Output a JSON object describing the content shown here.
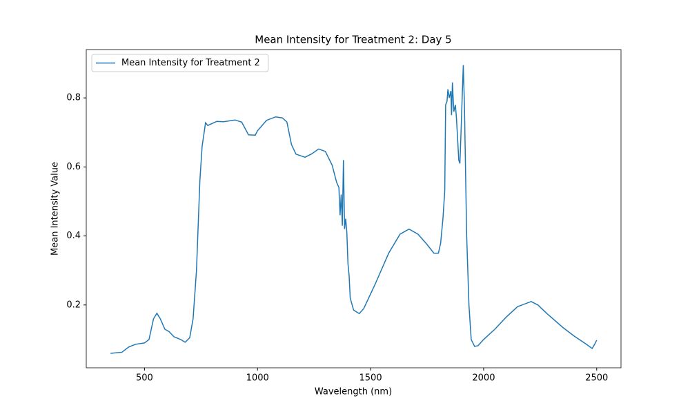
{
  "chart_data": {
    "type": "line",
    "title": "Mean Intensity for Treatment 2: Day 5",
    "x_label": "Wavelength (nm)",
    "y_label": "Mean Intensity Value",
    "xlim": [
      242.5,
      2607.5
    ],
    "ylim": [
      0.018,
      0.94
    ],
    "xticks": [
      500,
      1000,
      1500,
      2000,
      2500
    ],
    "yticks": [
      0.2,
      0.4,
      0.6,
      0.8
    ],
    "grid": false,
    "legend": "upper left",
    "x": [
      350,
      400,
      430,
      460,
      500,
      520,
      540,
      555,
      570,
      590,
      610,
      630,
      660,
      680,
      700,
      715,
      730,
      745,
      755,
      765,
      770,
      780,
      800,
      820,
      850,
      900,
      930,
      960,
      990,
      1000,
      1040,
      1080,
      1110,
      1130,
      1150,
      1170,
      1210,
      1240,
      1270,
      1300,
      1330,
      1350,
      1360,
      1365,
      1370,
      1375,
      1380,
      1385,
      1390,
      1395,
      1400,
      1405,
      1410,
      1425,
      1450,
      1470,
      1520,
      1580,
      1630,
      1670,
      1710,
      1750,
      1780,
      1800,
      1810,
      1820,
      1828,
      1832,
      1838,
      1842,
      1848,
      1855,
      1858,
      1862,
      1868,
      1875,
      1880,
      1885,
      1890,
      1895,
      1900,
      1905,
      1910,
      1915,
      1925,
      1935,
      1945,
      1960,
      1975,
      2000,
      2050,
      2100,
      2150,
      2210,
      2240,
      2280,
      2350,
      2400,
      2450,
      2480,
      2490,
      2500
    ],
    "series": [
      {
        "name": "Mean Intensity for Treatment 2",
        "color": "#1f77b4",
        "values": [
          0.06,
          0.063,
          0.078,
          0.086,
          0.09,
          0.1,
          0.16,
          0.176,
          0.16,
          0.13,
          0.122,
          0.108,
          0.1,
          0.092,
          0.105,
          0.16,
          0.3,
          0.56,
          0.66,
          0.705,
          0.728,
          0.72,
          0.726,
          0.732,
          0.731,
          0.736,
          0.73,
          0.693,
          0.692,
          0.705,
          0.735,
          0.745,
          0.742,
          0.73,
          0.665,
          0.637,
          0.628,
          0.638,
          0.652,
          0.645,
          0.605,
          0.555,
          0.54,
          0.46,
          0.52,
          0.43,
          0.62,
          0.42,
          0.45,
          0.41,
          0.32,
          0.285,
          0.22,
          0.185,
          0.175,
          0.19,
          0.26,
          0.35,
          0.405,
          0.42,
          0.405,
          0.375,
          0.35,
          0.35,
          0.38,
          0.45,
          0.53,
          0.78,
          0.79,
          0.825,
          0.8,
          0.82,
          0.75,
          0.845,
          0.76,
          0.78,
          0.74,
          0.68,
          0.62,
          0.61,
          0.7,
          0.8,
          0.895,
          0.78,
          0.4,
          0.2,
          0.1,
          0.08,
          0.082,
          0.1,
          0.13,
          0.165,
          0.195,
          0.21,
          0.2,
          0.175,
          0.135,
          0.11,
          0.088,
          0.074,
          0.085,
          0.098
        ]
      }
    ]
  }
}
